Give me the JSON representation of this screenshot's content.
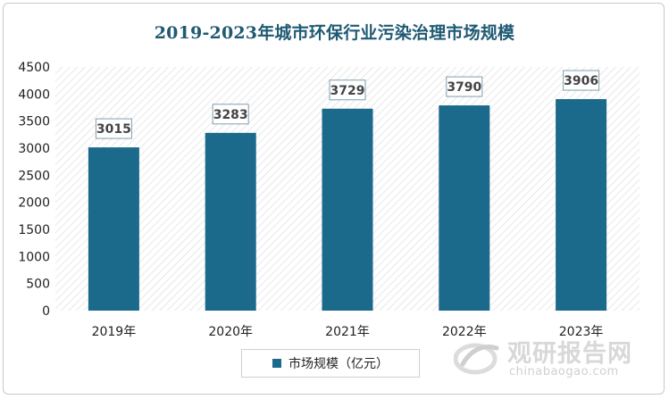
{
  "chart_data": {
    "type": "bar",
    "title": "2019-2023年城市环保行业污染治理市场规模",
    "categories": [
      "2019年",
      "2020年",
      "2021年",
      "2022年",
      "2023年"
    ],
    "series": [
      {
        "name": "市场规模（亿元）",
        "values": [
          3015,
          3283,
          3729,
          3790,
          3906
        ]
      }
    ],
    "ylim": [
      0,
      4500
    ],
    "yticks": [
      0,
      500,
      1000,
      1500,
      2000,
      2500,
      3000,
      3500,
      4000,
      4500
    ],
    "bar_color": "#1b6a8c",
    "label_color": "#444444",
    "legend_position": "bottom",
    "grid": false,
    "plot_background": "diagonal-hatch"
  },
  "watermark": {
    "name": "观研报告网",
    "url": "chinabaogao.com"
  }
}
